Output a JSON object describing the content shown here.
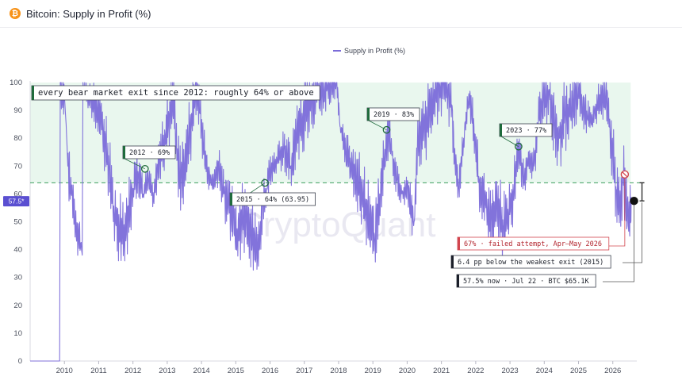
{
  "header": {
    "coin_icon": "bitcoin-icon",
    "coin_glyph": "₿",
    "title": "Bitcoin: Supply in Profit (%)"
  },
  "watermark": "CryptoQuant",
  "colors": {
    "line": "#7b6cd9",
    "band": "#e9f7ee",
    "threshold": "#3c9e5e",
    "now_marker": "#111111",
    "failed": "#d2454e"
  },
  "chart_data": {
    "type": "line",
    "title": "Bitcoin: Supply in Profit (%)",
    "xlabel": "",
    "ylabel": "",
    "ylim": [
      0,
      100
    ],
    "xlim": [
      2009.0,
      2026.7
    ],
    "grid": false,
    "legend_position": "top-center",
    "x_ticks": [
      "2010",
      "2011",
      "2012",
      "2013",
      "2014",
      "2015",
      "2016",
      "2017",
      "2018",
      "2019",
      "2020",
      "2021",
      "2022",
      "2023",
      "2024",
      "2025",
      "2026"
    ],
    "y_ticks": [
      "0",
      "10",
      "20",
      "30",
      "40",
      "50",
      "60",
      "70",
      "80",
      "90",
      "100"
    ],
    "series": [
      {
        "name": "Supply in Profit (%)",
        "x": [
          2009.0,
          2009.86,
          2009.88,
          2010.0,
          2010.05,
          2010.1,
          2010.2,
          2010.3,
          2010.4,
          2010.5,
          2010.52,
          2010.54,
          2010.56,
          2010.7,
          2010.9,
          2011.1,
          2011.3,
          2011.45,
          2011.6,
          2011.75,
          2011.9,
          2012.0,
          2012.15,
          2012.3,
          2012.45,
          2012.6,
          2012.75,
          2012.9,
          2013.05,
          2013.2,
          2013.28,
          2013.4,
          2013.55,
          2013.7,
          2013.85,
          2013.95,
          2014.05,
          2014.2,
          2014.35,
          2014.5,
          2014.65,
          2014.8,
          2014.95,
          2015.05,
          2015.2,
          2015.35,
          2015.5,
          2015.65,
          2015.8,
          2015.9,
          2016.0,
          2016.2,
          2016.4,
          2016.6,
          2016.8,
          2017.0,
          2017.2,
          2017.4,
          2017.6,
          2017.8,
          2017.95,
          2018.05,
          2018.2,
          2018.35,
          2018.5,
          2018.65,
          2018.8,
          2018.95,
          2019.05,
          2019.2,
          2019.35,
          2019.45,
          2019.55,
          2019.7,
          2019.85,
          2020.0,
          2020.2,
          2020.3,
          2020.45,
          2020.6,
          2020.8,
          2020.95,
          2021.1,
          2021.3,
          2021.4,
          2021.5,
          2021.65,
          2021.8,
          2021.95,
          2022.1,
          2022.3,
          2022.45,
          2022.6,
          2022.8,
          2022.95,
          2023.1,
          2023.25,
          2023.4,
          2023.55,
          2023.7,
          2023.85,
          2024.0,
          2024.15,
          2024.3,
          2024.45,
          2024.6,
          2024.75,
          2024.9,
          2025.0,
          2025.1,
          2025.25,
          2025.4,
          2025.55,
          2025.7,
          2025.8,
          2025.9,
          2026.0,
          2026.1,
          2026.2,
          2026.3,
          2026.45,
          2026.55
        ],
        "y": [
          0,
          0,
          100,
          95,
          85,
          70,
          60,
          52,
          45,
          40,
          38,
          100,
          98,
          95,
          92,
          85,
          70,
          52,
          48,
          45,
          55,
          62,
          68,
          60,
          66,
          58,
          72,
          78,
          88,
          96,
          72,
          65,
          74,
          85,
          100,
          90,
          78,
          66,
          64,
          70,
          60,
          55,
          50,
          45,
          52,
          48,
          44,
          40,
          58,
          62,
          68,
          72,
          76,
          70,
          82,
          88,
          95,
          96,
          98,
          100,
          100,
          84,
          76,
          70,
          66,
          62,
          55,
          48,
          44,
          60,
          76,
          83,
          74,
          65,
          60,
          62,
          50,
          78,
          82,
          86,
          96,
          99,
          100,
          92,
          70,
          62,
          80,
          96,
          84,
          64,
          55,
          50,
          58,
          48,
          52,
          60,
          77,
          65,
          72,
          70,
          88,
          94,
          96,
          84,
          80,
          88,
          90,
          94,
          96,
          92,
          88,
          86,
          92,
          95,
          96,
          84,
          75,
          60,
          55,
          67,
          50,
          57.5
        ]
      }
    ],
    "threshold_line": {
      "value": 64,
      "label": "every bear market exit since 2012: roughly 64% or above"
    },
    "current_value_label": "57.5*",
    "annotations": [
      {
        "x": 2012.35,
        "y": 69,
        "label": "2012 · 69%"
      },
      {
        "x": 2015.85,
        "y": 63.95,
        "label": "2015 · 64% (63.95)"
      },
      {
        "x": 2019.4,
        "y": 83,
        "label": "2019 · 83%"
      },
      {
        "x": 2023.25,
        "y": 77,
        "label": "2023 · 77%"
      }
    ],
    "failed_attempt": {
      "x": 2026.35,
      "y": 67,
      "label": "67% · failed attempt, Apr–May 2026"
    },
    "gap_note": {
      "label": "6.4 pp below the weakest exit (2015)"
    },
    "now": {
      "x": 2026.62,
      "y": 57.5,
      "label": "57.5% now · Jul 22 · BTC $65.1K"
    }
  }
}
